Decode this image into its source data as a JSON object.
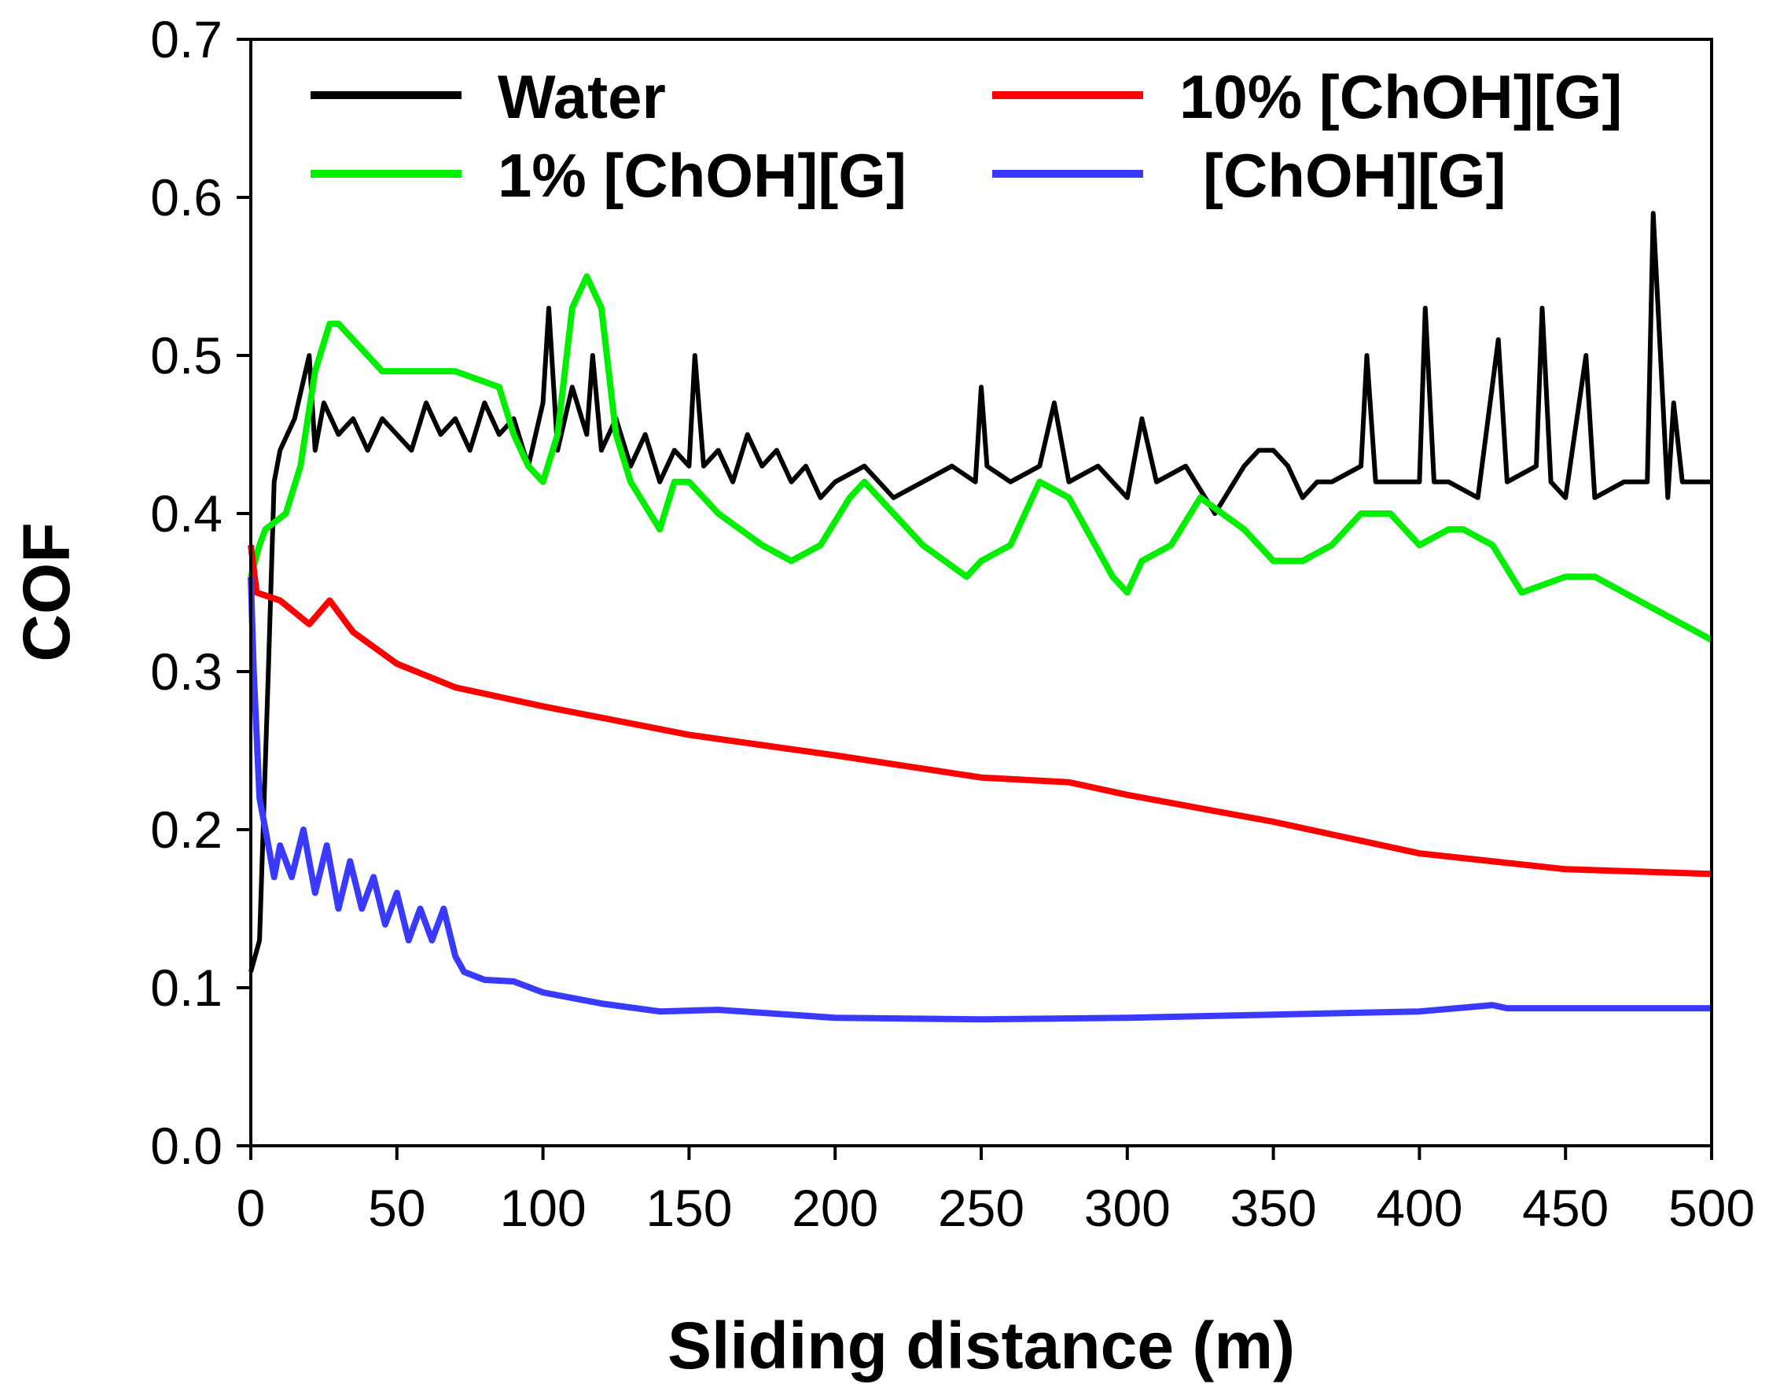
{
  "chart_data": {
    "type": "line",
    "title": "",
    "xlabel": "Sliding distance (m)",
    "ylabel": "COF",
    "xlim": [
      0,
      500
    ],
    "ylim": [
      0,
      0.7
    ],
    "xticks": [
      "0",
      "50",
      "100",
      "150",
      "200",
      "250",
      "300",
      "350",
      "400",
      "450",
      "500"
    ],
    "yticks": [
      "0.0",
      "0.1",
      "0.2",
      "0.3",
      "0.4",
      "0.5",
      "0.6",
      "0.7"
    ],
    "grid": false,
    "legend_position": "top",
    "series": [
      {
        "name": "Water",
        "color": "#000000",
        "x": [
          0,
          3,
          6,
          8,
          10,
          15,
          20,
          22,
          25,
          30,
          35,
          40,
          45,
          50,
          55,
          60,
          65,
          70,
          75,
          80,
          85,
          90,
          95,
          100,
          102,
          105,
          110,
          115,
          117,
          120,
          125,
          130,
          135,
          140,
          145,
          150,
          152,
          155,
          160,
          165,
          170,
          175,
          180,
          185,
          190,
          195,
          200,
          210,
          220,
          230,
          240,
          248,
          250,
          252,
          260,
          270,
          275,
          280,
          290,
          300,
          305,
          310,
          320,
          330,
          340,
          345,
          350,
          355,
          360,
          365,
          370,
          380,
          382,
          385,
          390,
          400,
          402,
          405,
          410,
          420,
          427,
          430,
          440,
          442,
          445,
          450,
          457,
          460,
          470,
          478,
          480,
          485,
          487,
          490,
          500
        ],
        "y": [
          0.11,
          0.13,
          0.3,
          0.42,
          0.44,
          0.46,
          0.5,
          0.44,
          0.47,
          0.45,
          0.46,
          0.44,
          0.46,
          0.45,
          0.44,
          0.47,
          0.45,
          0.46,
          0.44,
          0.47,
          0.45,
          0.46,
          0.43,
          0.47,
          0.53,
          0.44,
          0.48,
          0.45,
          0.5,
          0.44,
          0.46,
          0.43,
          0.45,
          0.42,
          0.44,
          0.43,
          0.5,
          0.43,
          0.44,
          0.42,
          0.45,
          0.43,
          0.44,
          0.42,
          0.43,
          0.41,
          0.42,
          0.43,
          0.41,
          0.42,
          0.43,
          0.42,
          0.48,
          0.43,
          0.42,
          0.43,
          0.47,
          0.42,
          0.43,
          0.41,
          0.46,
          0.42,
          0.43,
          0.4,
          0.43,
          0.44,
          0.44,
          0.43,
          0.41,
          0.42,
          0.42,
          0.43,
          0.5,
          0.42,
          0.42,
          0.42,
          0.53,
          0.42,
          0.42,
          0.41,
          0.51,
          0.42,
          0.43,
          0.53,
          0.42,
          0.41,
          0.5,
          0.41,
          0.42,
          0.42,
          0.59,
          0.41,
          0.47,
          0.42,
          0.42
        ]
      },
      {
        "name": "10% [ChOH][G]",
        "color": "#ff0000",
        "x": [
          0,
          2,
          10,
          20,
          27,
          35,
          50,
          70,
          100,
          150,
          200,
          250,
          280,
          300,
          350,
          400,
          450,
          500
        ],
        "y": [
          0.38,
          0.35,
          0.345,
          0.33,
          0.345,
          0.325,
          0.305,
          0.29,
          0.278,
          0.26,
          0.247,
          0.233,
          0.23,
          0.222,
          0.205,
          0.185,
          0.175,
          0.172
        ]
      },
      {
        "name": "1% [ChOH][G]",
        "color": "#00ee00",
        "x": [
          0,
          3,
          5,
          12,
          17,
          22,
          27,
          30,
          35,
          45,
          55,
          70,
          85,
          90,
          95,
          100,
          105,
          110,
          115,
          120,
          125,
          130,
          140,
          145,
          150,
          160,
          175,
          185,
          195,
          205,
          210,
          220,
          230,
          245,
          250,
          260,
          270,
          280,
          295,
          300,
          305,
          315,
          325,
          340,
          350,
          360,
          370,
          380,
          390,
          400,
          410,
          415,
          425,
          435,
          450,
          460,
          470,
          490,
          500
        ],
        "y": [
          0.36,
          0.38,
          0.39,
          0.4,
          0.43,
          0.49,
          0.52,
          0.52,
          0.51,
          0.49,
          0.49,
          0.49,
          0.48,
          0.45,
          0.43,
          0.42,
          0.45,
          0.53,
          0.55,
          0.53,
          0.45,
          0.42,
          0.39,
          0.42,
          0.42,
          0.4,
          0.38,
          0.37,
          0.38,
          0.41,
          0.42,
          0.4,
          0.38,
          0.36,
          0.37,
          0.38,
          0.42,
          0.41,
          0.36,
          0.35,
          0.37,
          0.38,
          0.41,
          0.39,
          0.37,
          0.37,
          0.38,
          0.4,
          0.4,
          0.38,
          0.39,
          0.39,
          0.38,
          0.35,
          0.36,
          0.36,
          0.35,
          0.33,
          0.32
        ]
      },
      {
        "name": "[ChOH][G]",
        "color": "#3a3aff",
        "x": [
          0,
          1,
          3,
          5,
          8,
          10,
          14,
          18,
          22,
          26,
          30,
          34,
          38,
          42,
          46,
          50,
          54,
          58,
          62,
          66,
          70,
          73,
          80,
          90,
          100,
          120,
          140,
          160,
          200,
          250,
          300,
          350,
          400,
          425,
          430,
          500
        ],
        "y": [
          0.36,
          0.3,
          0.22,
          0.2,
          0.17,
          0.19,
          0.17,
          0.2,
          0.16,
          0.19,
          0.15,
          0.18,
          0.15,
          0.17,
          0.14,
          0.16,
          0.13,
          0.15,
          0.13,
          0.15,
          0.12,
          0.11,
          0.105,
          0.104,
          0.097,
          0.09,
          0.085,
          0.086,
          0.081,
          0.08,
          0.081,
          0.083,
          0.085,
          0.089,
          0.087,
          0.087
        ]
      }
    ],
    "legend_order": [
      0,
      1,
      2,
      3
    ]
  }
}
